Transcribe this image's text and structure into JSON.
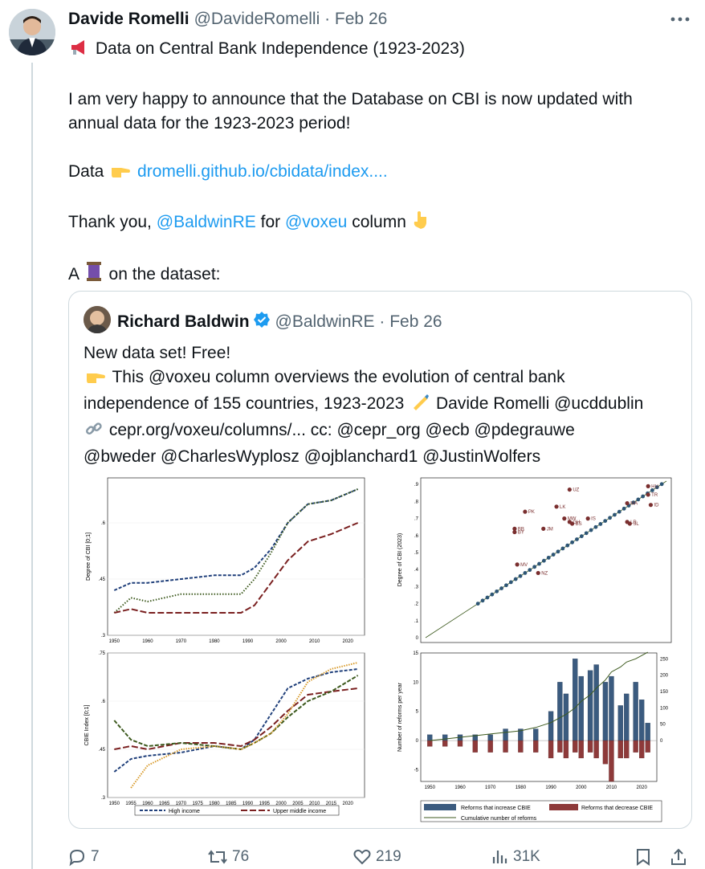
{
  "tweet": {
    "author_name": "Davide Romelli",
    "handle_time": "@DavideRomelli · Feb 26",
    "line1": "Data on Central Bank Independence (1923-2023)",
    "line2": "I am very happy to announce that the Database on CBI is now updated with",
    "line3": "annual data for the 1923-2023 period!",
    "data_label": "Data",
    "data_link": "dromelli.github.io/cbidata/index....",
    "thanks_prefix": "Thank you,",
    "mention1": "@BaldwinRE",
    "thanks_mid": "for",
    "mention2": "@voxeu",
    "thanks_suffix": "column",
    "thread_prefix": "A",
    "thread_suffix": "on the dataset:"
  },
  "quote": {
    "author_name": "Richard Baldwin",
    "handle_time": "@BaldwinRE · Feb 26",
    "lines": [
      "New data set! Free!",
      "This @voxeu column overviews the evolution of central bank",
      "independence of 155 countries, 1923-2023",
      "Davide Romelli @ucddublin",
      "cepr.org/voxeu/columns/... cc: @cepr_org @ecb @pdegrauwe",
      "@bweder @CharlesWyplosz @ojblanchard1 @JustinWolfers"
    ]
  },
  "actions": {
    "replies": "7",
    "reposts": "76",
    "likes": "219",
    "views": "31K"
  },
  "icons": [
    "more-icon",
    "megaphone-icon",
    "pointing-right-icon",
    "pointing-down-icon",
    "thread-spool-icon",
    "verified-icon",
    "writing-hand-icon",
    "link-icon",
    "reply-icon",
    "repost-icon",
    "like-icon",
    "views-icon",
    "bookmark-icon",
    "share-icon"
  ],
  "colors": {
    "link": "#1d9bf0",
    "muted": "#536471",
    "high": "#1f3f7a",
    "upper_middle": "#7a2020",
    "green": "#3d5a1e",
    "orange": "#d89a2a",
    "blue_bar": "#3b5b7f",
    "red_bar": "#8e3a3a",
    "dot": "#7a2f2f"
  },
  "chart_data": [
    {
      "type": "line",
      "ylabel": "Degree of CBI [0;1]",
      "x_ticks": [
        "1950",
        "1960",
        "1970",
        "1980",
        "1990",
        "2000",
        "2010",
        "2020"
      ],
      "y_ticks": [
        ".3",
        ".45",
        ".6"
      ],
      "ylim": [
        0.3,
        0.72
      ],
      "x": [
        1950,
        1955,
        1960,
        1970,
        1980,
        1988,
        1992,
        1997,
        2002,
        2008,
        2015,
        2023
      ],
      "series": [
        {
          "values": [
            0.42,
            0.44,
            0.44,
            0.45,
            0.46,
            0.46,
            0.48,
            0.53,
            0.6,
            0.65,
            0.66,
            0.69
          ]
        },
        {
          "values": [
            0.36,
            0.4,
            0.39,
            0.41,
            0.41,
            0.41,
            0.45,
            0.52,
            0.6,
            0.65,
            0.66,
            0.69
          ]
        },
        {
          "values": [
            0.36,
            0.37,
            0.36,
            0.36,
            0.36,
            0.36,
            0.38,
            0.44,
            0.5,
            0.55,
            0.57,
            0.6
          ]
        }
      ]
    },
    {
      "type": "scatter",
      "ylabel": "Degree of CBI (2023)",
      "y_ticks": [
        "0",
        ".1",
        ".2",
        ".3",
        ".4",
        ".5",
        ".6",
        ".7",
        ".8",
        ".9"
      ],
      "ylim": [
        0,
        0.92
      ],
      "labels": [
        "UZ",
        "PK",
        "LK",
        "MW",
        "GH",
        "BS",
        "JM",
        "BB",
        "BY",
        "MV",
        "NZ",
        "IS",
        "MA",
        "TR",
        "ID",
        "SL",
        "LR",
        "HU"
      ]
    },
    {
      "type": "line",
      "ylabel": "CBIE Index [0;1]",
      "x_ticks": [
        "1950",
        "1955",
        "1960",
        "1965",
        "1970",
        "1975",
        "1980",
        "1985",
        "1990",
        "1995",
        "2000",
        "2005",
        "2010",
        "2015",
        "2020"
      ],
      "y_ticks": [
        ".3",
        ".45",
        ".6",
        ".75"
      ],
      "ylim": [
        0.3,
        0.75
      ],
      "legend": [
        "High income",
        "Upper middle income"
      ],
      "x": [
        1950,
        1955,
        1960,
        1970,
        1980,
        1988,
        1992,
        1997,
        2002,
        2008,
        2015,
        2023
      ],
      "series": [
        {
          "name": "High income",
          "values": [
            0.38,
            0.42,
            0.43,
            0.44,
            0.46,
            0.45,
            0.48,
            0.56,
            0.64,
            0.67,
            0.69,
            0.7
          ]
        },
        {
          "name": "Upper middle income",
          "values": [
            0.45,
            0.46,
            0.45,
            0.47,
            0.47,
            0.46,
            0.48,
            0.52,
            0.57,
            0.62,
            0.63,
            0.64
          ]
        },
        {
          "values": [
            0.54,
            0.48,
            0.46,
            0.47,
            0.46,
            0.45,
            0.47,
            0.5,
            0.55,
            0.6,
            0.63,
            0.68
          ]
        },
        {
          "values": [
            null,
            0.33,
            0.4,
            0.45,
            0.46,
            0.45,
            0.47,
            0.5,
            0.56,
            0.66,
            0.7,
            0.72
          ]
        }
      ]
    },
    {
      "type": "bar",
      "ylabel": "Number of reforms per year",
      "x_ticks": [
        "1950",
        "1960",
        "1970",
        "1980",
        "1990",
        "2000",
        "2010",
        "2020"
      ],
      "y_ticks": [
        "-5",
        "0",
        "5",
        "10",
        "15"
      ],
      "y2_ticks": [
        "0",
        "50",
        "100",
        "150",
        "200",
        "250"
      ],
      "ylim": [
        -7,
        15
      ],
      "legend": [
        "Reforms that increase CBIE",
        "Reforms that decrease CBIE",
        "Cumulative number of reforms"
      ],
      "years": [
        1950,
        1955,
        1960,
        1965,
        1970,
        1975,
        1980,
        1985,
        1990,
        1993,
        1995,
        1998,
        2000,
        2003,
        2005,
        2008,
        2010,
        2013,
        2015,
        2018,
        2020,
        2022
      ],
      "increase": [
        1,
        1,
        1,
        1,
        1,
        2,
        2,
        2,
        5,
        10,
        8,
        14,
        11,
        12,
        13,
        10,
        11,
        6,
        8,
        10,
        7,
        3
      ],
      "decrease": [
        -1,
        -1,
        -1,
        -2,
        -2,
        -2,
        -2,
        -2,
        -3,
        -2,
        -3,
        -2,
        -3,
        -2,
        -3,
        -4,
        -7,
        -3,
        -3,
        -2,
        -3,
        -2
      ],
      "cumulative": [
        0,
        5,
        10,
        15,
        20,
        25,
        30,
        40,
        55,
        70,
        80,
        100,
        120,
        140,
        160,
        185,
        210,
        225,
        240,
        250,
        260,
        270
      ]
    }
  ]
}
